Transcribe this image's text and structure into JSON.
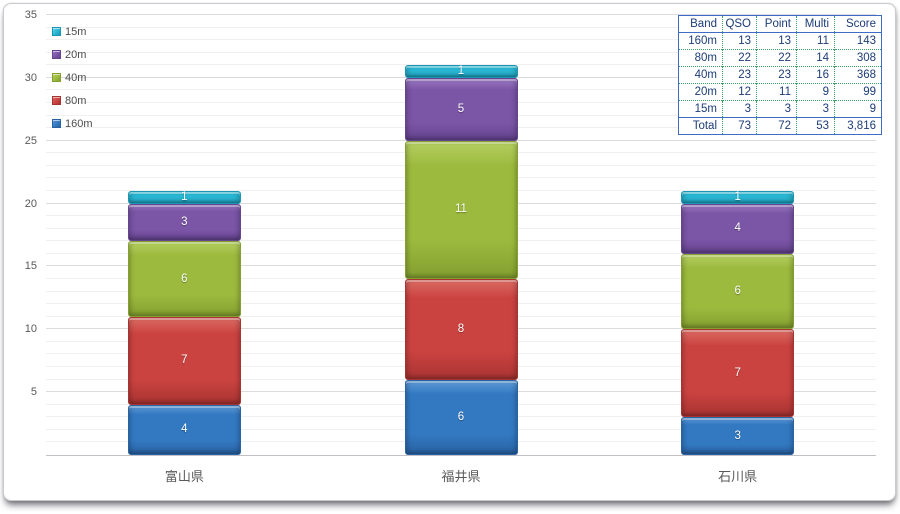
{
  "chart_data": {
    "type": "bar",
    "stacked": true,
    "title": "",
    "xlabel": "",
    "ylabel": "",
    "grid": true,
    "categories": [
      "富山県",
      "福井県",
      "石川県"
    ],
    "series": [
      {
        "name": "160m",
        "values": [
          4,
          6,
          3
        ],
        "color": "#3379c2",
        "light": "#5e9ad6",
        "dark": "#2a63a4"
      },
      {
        "name": "80m",
        "values": [
          7,
          8,
          7
        ],
        "color": "#cb4341",
        "light": "#da6b63",
        "dark": "#a83432"
      },
      {
        "name": "40m",
        "values": [
          6,
          11,
          6
        ],
        "color": "#9cba3e",
        "light": "#b5cf60",
        "dark": "#84a030"
      },
      {
        "name": "20m",
        "values": [
          3,
          5,
          4
        ],
        "color": "#7b55a6",
        "light": "#9878c0",
        "dark": "#654490"
      },
      {
        "name": "15m",
        "values": [
          1,
          1,
          1
        ],
        "color": "#29b7d3",
        "light": "#62d2e6",
        "dark": "#1b97b5"
      }
    ],
    "legend_order": [
      "15m",
      "20m",
      "40m",
      "80m",
      "160m"
    ],
    "legend_position": "top-left",
    "ylim": [
      0,
      35
    ],
    "ytick_interval": 5,
    "yminor_interval": 1,
    "bar_totals": [
      21,
      31,
      21
    ]
  },
  "table": {
    "headers": [
      "Band",
      "QSO",
      "Point",
      "Multi",
      "Score"
    ],
    "rows": [
      [
        "160m",
        "13",
        "13",
        "11",
        "143"
      ],
      [
        "80m",
        "22",
        "22",
        "14",
        "308"
      ],
      [
        "40m",
        "23",
        "23",
        "16",
        "368"
      ],
      [
        "20m",
        "12",
        "11",
        "9",
        "99"
      ],
      [
        "15m",
        "3",
        "3",
        "3",
        "9"
      ],
      [
        "Total",
        "73",
        "72",
        "53",
        "3,816"
      ]
    ]
  },
  "colors": {
    "grid_minor": "#f0f0f3",
    "grid_major": "#dcdce0",
    "baseline": "#c0c0c6",
    "axis_text": "#595959",
    "legend_text": "#4d4d4d",
    "table_border": "#3e6bc5",
    "table_grid": "#3fa065",
    "table_text": "#1c3c78"
  }
}
